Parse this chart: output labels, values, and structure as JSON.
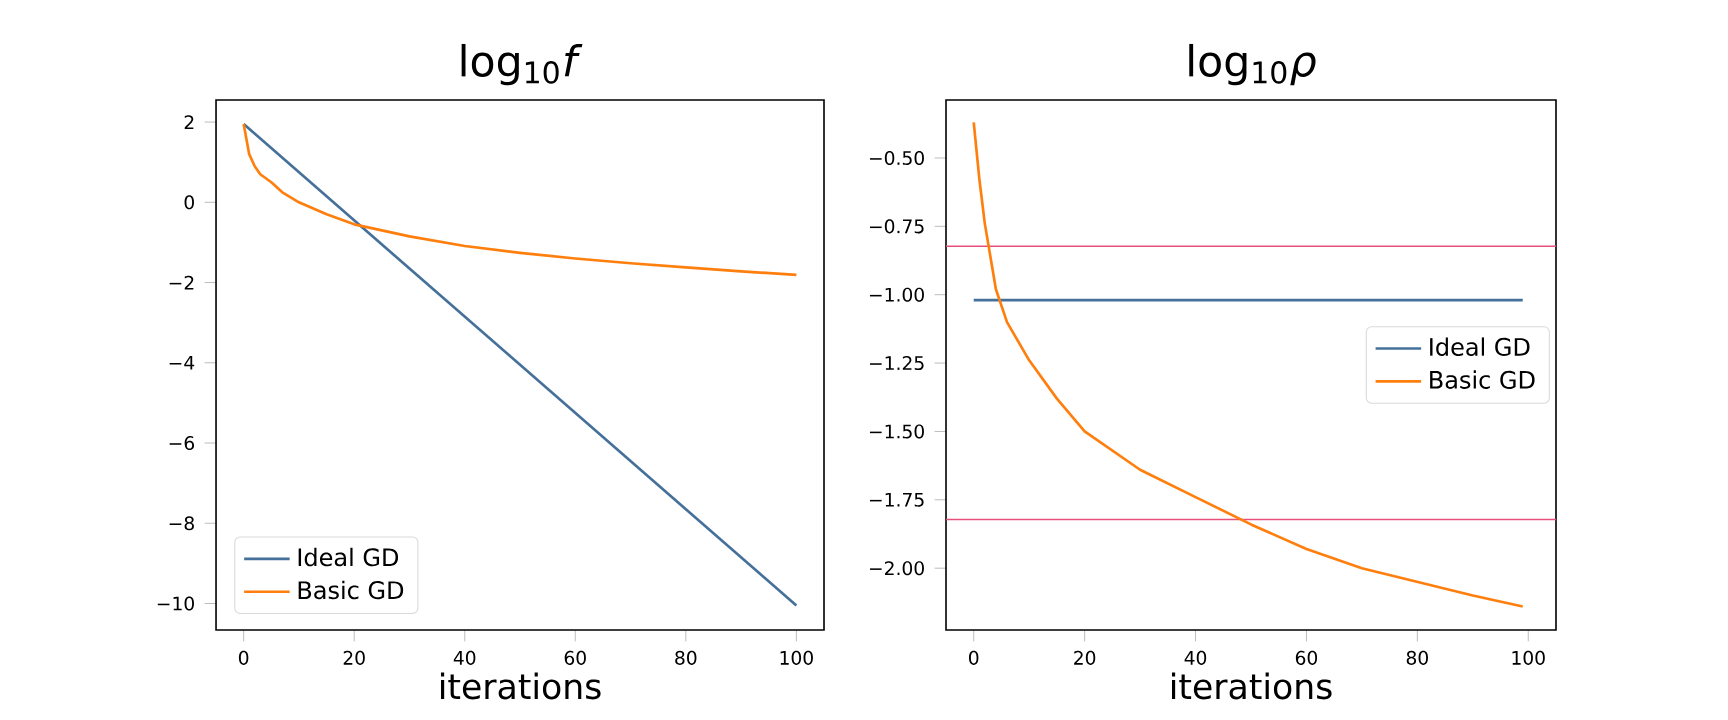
{
  "chart_data": [
    {
      "type": "line",
      "title": "log$_{10}$*f*",
      "xlabel": "iterations",
      "xlim": [
        -5,
        105
      ],
      "ylim": [
        -10.66,
        2.55
      ],
      "xticks": [
        0,
        20,
        40,
        60,
        80,
        100
      ],
      "yticks": [
        {
          "value": -10,
          "label": "−10"
        },
        {
          "value": -8,
          "label": "−8"
        },
        {
          "value": -6,
          "label": "−6"
        },
        {
          "value": -4,
          "label": "−4"
        },
        {
          "value": -2,
          "label": "−2"
        },
        0,
        2
      ],
      "legend": "bottom left",
      "grid": false,
      "series": [
        {
          "name": "Ideal GD",
          "color": "#44709a",
          "x": [
            0,
            100
          ],
          "values": [
            1.95,
            -10.05
          ]
        },
        {
          "name": "Basic GD",
          "color": "#ff7f0e",
          "x": [
            0,
            1,
            2,
            3,
            5,
            7,
            10,
            15,
            20,
            30,
            40,
            50,
            60,
            70,
            80,
            90,
            100
          ],
          "values": [
            1.95,
            1.2,
            0.9,
            0.7,
            0.5,
            0.25,
            0.0,
            -0.3,
            -0.55,
            -0.85,
            -1.09,
            -1.26,
            -1.4,
            -1.52,
            -1.62,
            -1.72,
            -1.81
          ]
        }
      ]
    },
    {
      "type": "line",
      "title": "log$_{10}$*ρ*",
      "xlabel": "iterations",
      "xlim": [
        -5,
        105
      ],
      "ylim": [
        -2.226,
        -0.288
      ],
      "xticks": [
        0,
        20,
        40,
        60,
        80,
        100
      ],
      "yticks": [
        {
          "value": -2.0,
          "label": "−2.00"
        },
        {
          "value": -1.75,
          "label": "−1.75"
        },
        {
          "value": -1.5,
          "label": "−1.50"
        },
        {
          "value": -1.25,
          "label": "−1.25"
        },
        {
          "value": -1.0,
          "label": "−1.00"
        },
        {
          "value": -0.75,
          "label": "−0.75"
        },
        {
          "value": -0.5,
          "label": "−0.50"
        }
      ],
      "legend": "right",
      "grid": false,
      "ref_lines": [
        {
          "axis": "y",
          "value": -0.823,
          "color": "#e8507a"
        },
        {
          "axis": "y",
          "value": -1.822,
          "color": "#e8507a"
        }
      ],
      "series": [
        {
          "name": "Ideal GD",
          "color": "#44709a",
          "x": [
            0,
            99
          ],
          "values": [
            -1.02,
            -1.02
          ]
        },
        {
          "name": "Basic GD",
          "color": "#ff7f0e",
          "x": [
            0,
            1,
            2,
            4,
            6,
            10,
            15,
            20,
            30,
            40,
            50,
            60,
            70,
            80,
            90,
            99
          ],
          "values": [
            -0.37,
            -0.575,
            -0.74,
            -0.98,
            -1.1,
            -1.24,
            -1.38,
            -1.5,
            -1.64,
            -1.74,
            -1.84,
            -1.93,
            -2.0,
            -2.05,
            -2.1,
            -2.14
          ]
        }
      ]
    }
  ]
}
